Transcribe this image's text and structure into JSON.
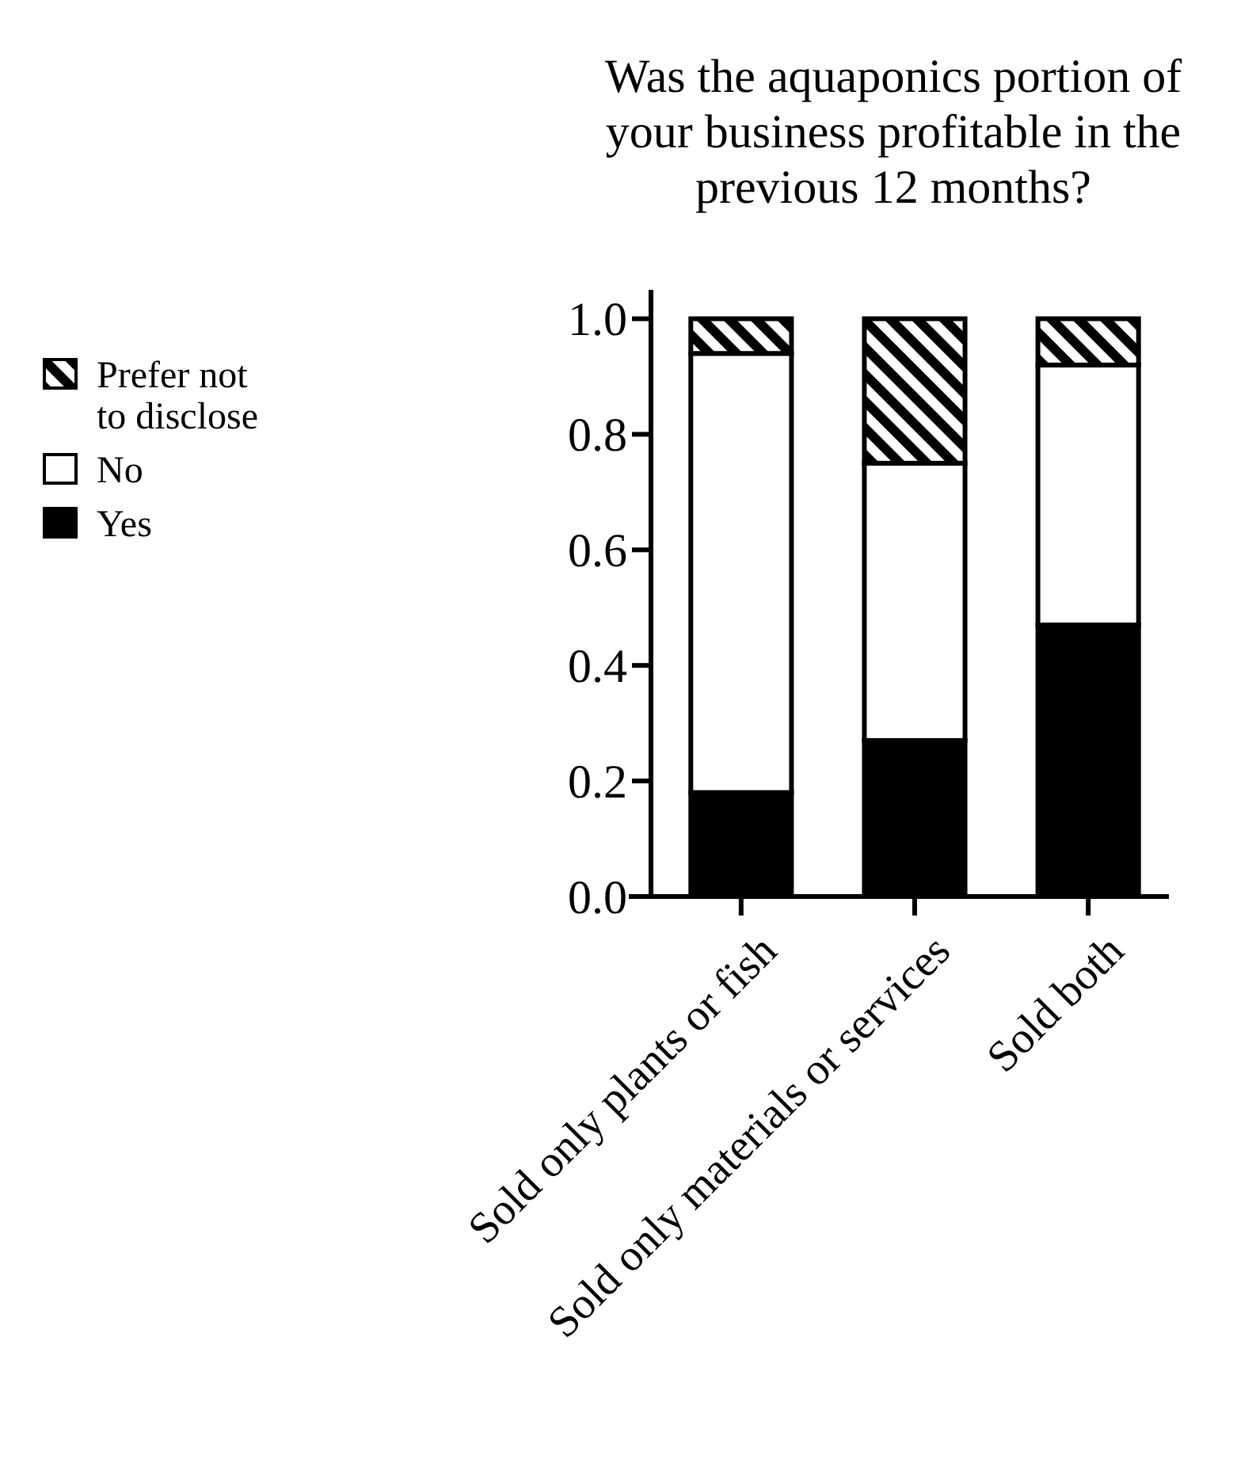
{
  "chart_data": {
    "type": "bar",
    "title": "Was the aquaponics portion of your business profitable in the previous 12 months?",
    "categories": [
      "Sold only plants or fish",
      "Sold only materials or services",
      "Sold both"
    ],
    "stacked": true,
    "legend": "left",
    "series": [
      {
        "name": "Yes",
        "color": "#000000",
        "values": [
          0.18,
          0.27,
          0.47
        ]
      },
      {
        "name": "No",
        "color": "#ffffff",
        "values": [
          0.76,
          0.48,
          0.45
        ]
      },
      {
        "name": "Prefer not to disclose",
        "color": "#000000",
        "values": [
          0.06,
          0.25,
          0.08
        ]
      }
    ],
    "ylim": [
      0,
      1.05
    ],
    "yticks": [
      {
        "value": 0,
        "label": "0.0"
      },
      {
        "value": 0.2,
        "label": "0.2"
      },
      {
        "value": 0.4,
        "label": "0.4"
      },
      {
        "value": 0.6,
        "label": "0.6"
      },
      {
        "value": 0.8,
        "label": "0.8"
      },
      {
        "value": 1,
        "label": "1.0"
      }
    ]
  }
}
